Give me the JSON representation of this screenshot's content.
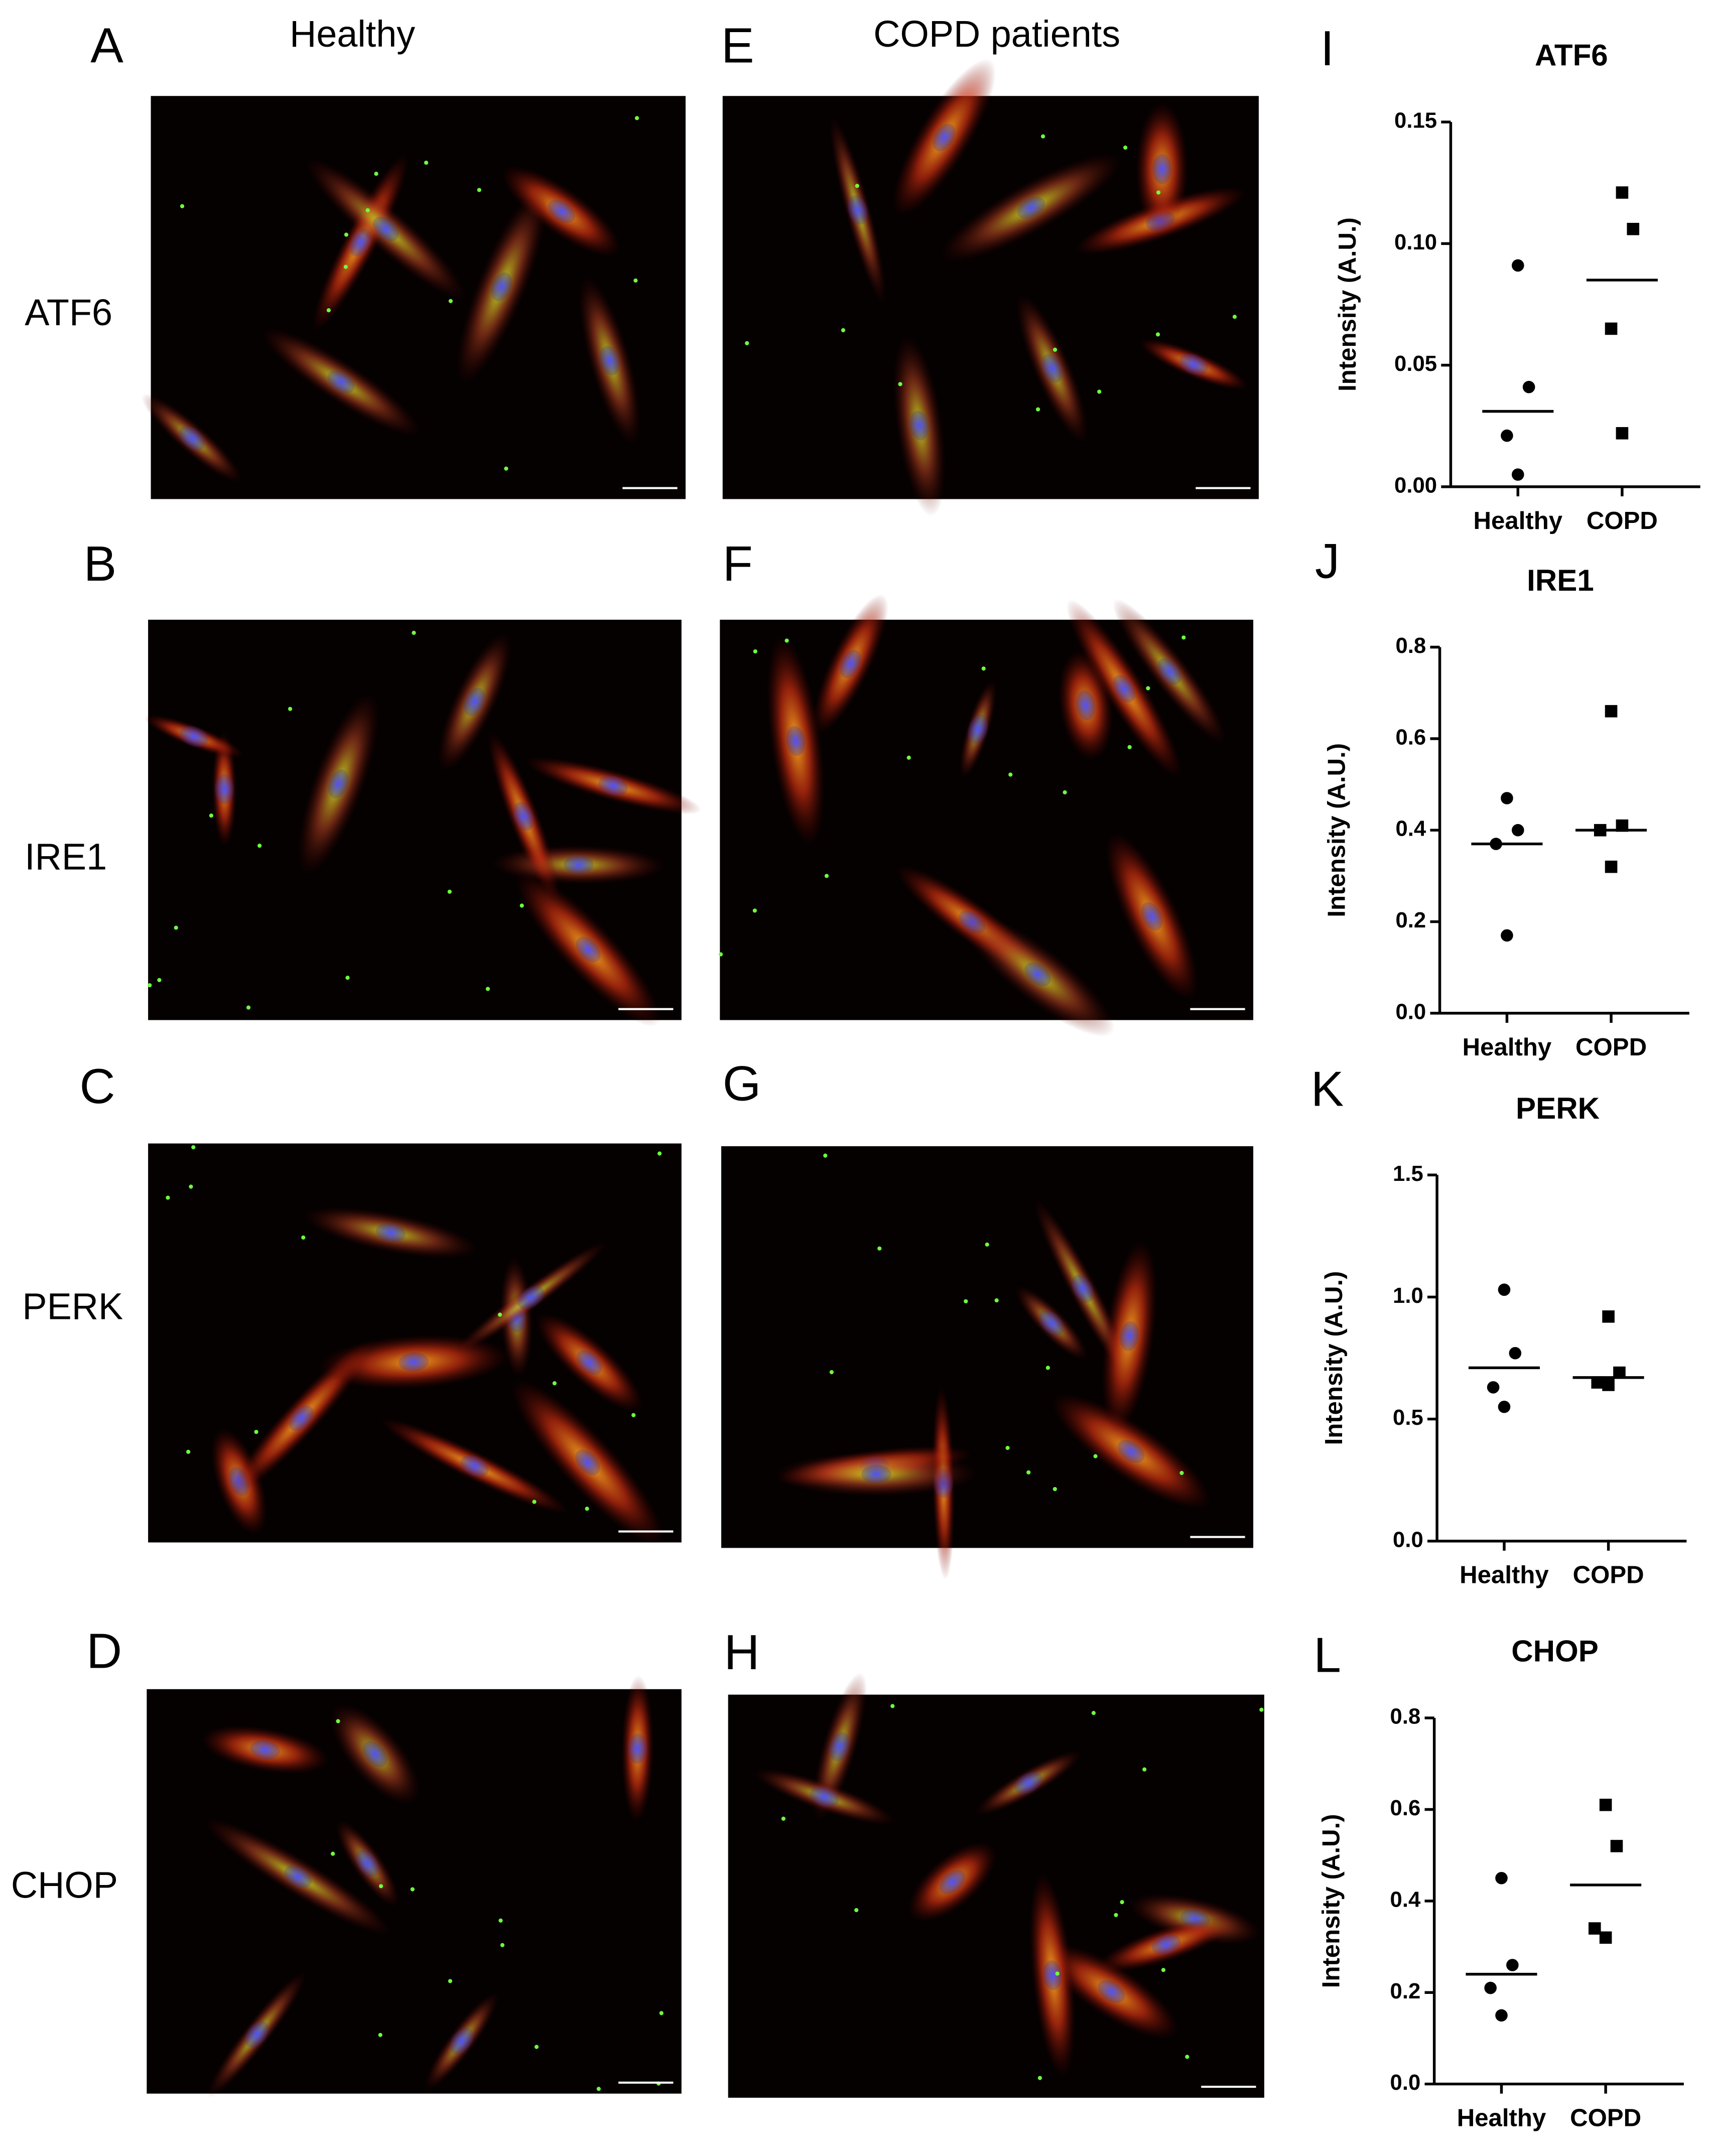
{
  "column_headers": [
    "Healthy",
    "COPD patients"
  ],
  "row_labels": [
    "ATF6",
    "IRE1",
    "PERK",
    "CHOP"
  ],
  "panel_letters": [
    "A",
    "B",
    "C",
    "D",
    "E",
    "F",
    "G",
    "H",
    "I",
    "J",
    "K",
    "L"
  ],
  "chart_data": [
    {
      "type": "scatter",
      "title": "ATF6",
      "ylabel": "Intensity (A.U.)",
      "categories": [
        "Healthy",
        "COPD"
      ],
      "series": [
        {
          "marker": "circle",
          "color": "#000000",
          "values": [
            0.091,
            0.041,
            0.021,
            0.005
          ],
          "mean": 0.031
        },
        {
          "marker": "square",
          "color": "#000000",
          "values": [
            0.121,
            0.106,
            0.065,
            0.022
          ],
          "mean": 0.085
        }
      ],
      "ylim": [
        0,
        0.15
      ],
      "yticks": [
        {
          "value": 0,
          "label": "0.00"
        },
        0.05,
        {
          "value": 0.1,
          "label": "0.10"
        },
        0.15
      ]
    },
    {
      "type": "scatter",
      "title": "IRE1",
      "ylabel": "Intensity (A.U.)",
      "categories": [
        "Healthy",
        "COPD"
      ],
      "series": [
        {
          "marker": "circle",
          "color": "#000000",
          "values": [
            0.47,
            0.4,
            0.37,
            0.17
          ],
          "mean": 0.37
        },
        {
          "marker": "square",
          "color": "#000000",
          "values": [
            0.66,
            0.41,
            0.4,
            0.32
          ],
          "mean": 0.4
        }
      ],
      "ylim": [
        0,
        0.8
      ],
      "yticks": [
        {
          "value": 0,
          "label": "0.0"
        },
        0.2,
        0.4,
        0.6,
        0.8
      ]
    },
    {
      "type": "scatter",
      "title": "PERK",
      "ylabel": "Intensity (A.U.)",
      "categories": [
        "Healthy",
        "COPD"
      ],
      "series": [
        {
          "marker": "circle",
          "color": "#000000",
          "values": [
            1.03,
            0.77,
            0.63,
            0.55
          ],
          "mean": 0.71
        },
        {
          "marker": "square",
          "color": "#000000",
          "values": [
            0.92,
            0.69,
            0.65,
            0.64
          ],
          "mean": 0.67
        }
      ],
      "ylim": [
        0,
        1.5
      ],
      "yticks": [
        {
          "value": 0,
          "label": "0.0"
        },
        0.5,
        {
          "value": 1,
          "label": "1.0"
        },
        1.5
      ]
    },
    {
      "type": "scatter",
      "title": "CHOP",
      "ylabel": "Intensity (A.U.)",
      "categories": [
        "Healthy",
        "COPD"
      ],
      "series": [
        {
          "marker": "circle",
          "color": "#000000",
          "values": [
            0.45,
            0.26,
            0.21,
            0.15
          ],
          "mean": 0.24
        },
        {
          "marker": "square",
          "color": "#000000",
          "values": [
            0.61,
            0.52,
            0.34,
            0.32
          ],
          "mean": 0.435
        }
      ],
      "ylim": [
        0,
        0.8
      ],
      "yticks": [
        {
          "value": 0,
          "label": "0.0"
        },
        0.2,
        0.4,
        0.6,
        0.8
      ]
    }
  ]
}
